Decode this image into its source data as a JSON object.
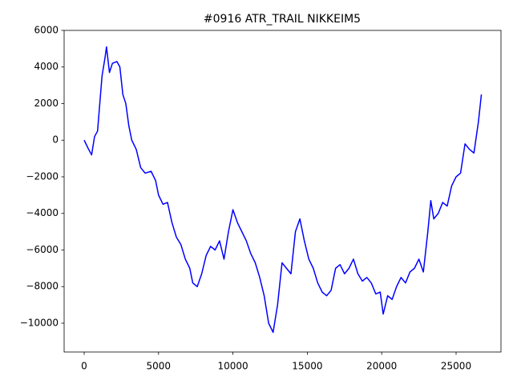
{
  "chart_data": {
    "type": "line",
    "title": "#0916 ATR_TRAIL NIKKEIM5",
    "x": [
      0,
      300,
      500,
      700,
      900,
      1000,
      1200,
      1400,
      1500,
      1700,
      1900,
      2200,
      2400,
      2600,
      2800,
      3000,
      3200,
      3500,
      3800,
      4100,
      4500,
      4800,
      5000,
      5300,
      5600,
      5900,
      6200,
      6500,
      6800,
      7100,
      7300,
      7600,
      7900,
      8200,
      8500,
      8800,
      9100,
      9400,
      9700,
      10000,
      10300,
      10600,
      10900,
      11200,
      11500,
      11800,
      12100,
      12400,
      12700,
      13000,
      13300,
      13600,
      13900,
      14200,
      14500,
      14800,
      15100,
      15400,
      15700,
      16000,
      16300,
      16600,
      16900,
      17200,
      17500,
      17800,
      18100,
      18400,
      18700,
      19000,
      19300,
      19600,
      19900,
      20100,
      20400,
      20700,
      21000,
      21300,
      21600,
      21900,
      22200,
      22500,
      22800,
      23100,
      23300,
      23500,
      23800,
      24100,
      24400,
      24700,
      25000,
      25300,
      25600,
      25900,
      26200,
      26500,
      26700
    ],
    "series": [
      {
        "color": "#0000ff",
        "values": [
          0,
          -500,
          -800,
          200,
          500,
          1500,
          3500,
          4500,
          5100,
          3700,
          4200,
          4300,
          4000,
          2500,
          2000,
          800,
          0,
          -500,
          -1500,
          -1800,
          -1700,
          -2200,
          -3000,
          -3500,
          -3400,
          -4500,
          -5300,
          -5700,
          -6500,
          -7000,
          -7800,
          -8000,
          -7300,
          -6300,
          -5800,
          -6000,
          -5500,
          -6500,
          -5000,
          -3800,
          -4500,
          -5000,
          -5500,
          -6200,
          -6700,
          -7500,
          -8500,
          -10000,
          -10500,
          -9000,
          -6700,
          -7000,
          -7300,
          -5000,
          -4300,
          -5500,
          -6500,
          -7000,
          -7800,
          -8300,
          -8500,
          -8200,
          -7000,
          -6800,
          -7300,
          -7000,
          -6500,
          -7300,
          -7700,
          -7500,
          -7800,
          -8400,
          -8300,
          -9500,
          -8500,
          -8700,
          -8000,
          -7500,
          -7800,
          -7200,
          -7000,
          -6500,
          -7200,
          -5000,
          -3300,
          -4300,
          -4000,
          -3400,
          -3600,
          -2500,
          -2000,
          -1800,
          -200,
          -500,
          -700,
          1000,
          2500
        ]
      }
    ],
    "xlim": [
      -1347,
      28017
    ],
    "ylim": [
      -11574,
      6000
    ],
    "xticks": [
      0,
      5000,
      10000,
      15000,
      20000,
      25000
    ],
    "yticks": [
      {
        "value": -10000,
        "label": "−10000"
      },
      {
        "value": -8000,
        "label": "−8000"
      },
      {
        "value": -6000,
        "label": "−6000"
      },
      {
        "value": -4000,
        "label": "−4000"
      },
      {
        "value": -2000,
        "label": "−2000"
      },
      0,
      2000,
      4000,
      6000
    ]
  }
}
